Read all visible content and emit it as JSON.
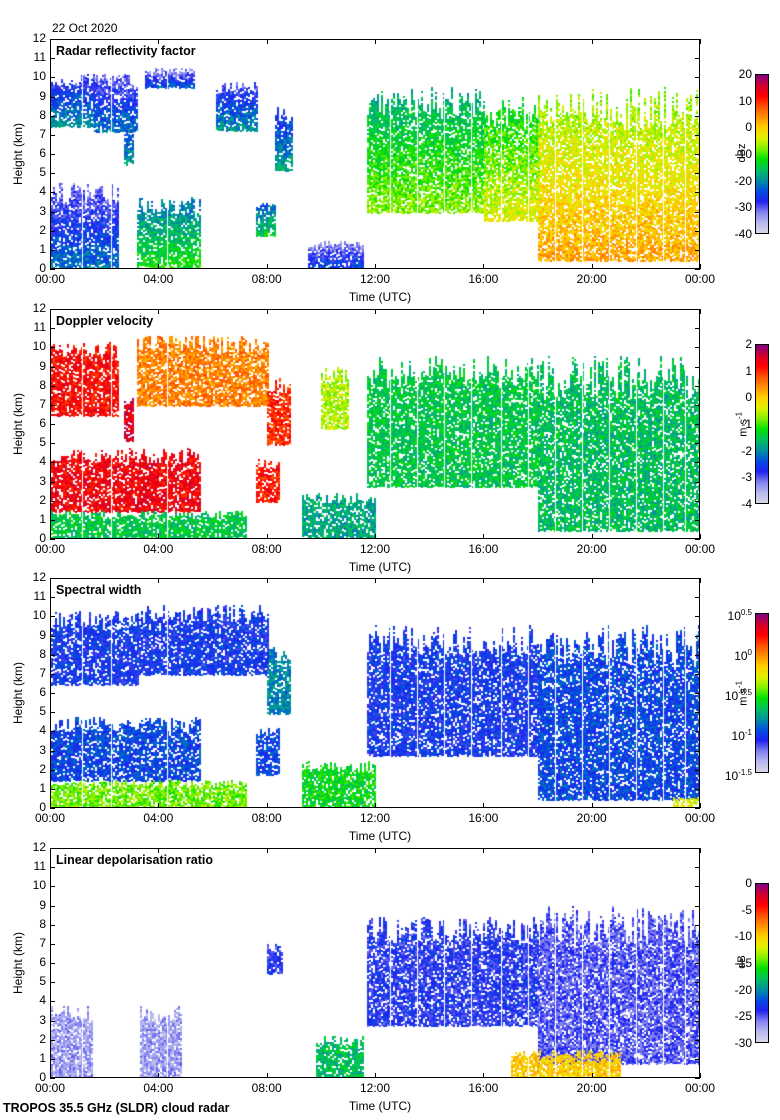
{
  "date": "22 Oct 2020",
  "footer": "TROPOS 35.5 GHz (SLDR) cloud radar",
  "colors": {
    "colormap": [
      "#d8d8e8",
      "#b8b8f0",
      "#8080f0",
      "#2020f0",
      "#0050e0",
      "#0090a0",
      "#00c060",
      "#00e000",
      "#80f000",
      "#e0f000",
      "#ffd000",
      "#ff9000",
      "#ff5000",
      "#ff0000",
      "#d00030",
      "#800080"
    ]
  },
  "chart_data": [
    {
      "type": "heatmap",
      "title": "Radar reflectivity factor",
      "xlabel": "Time (UTC)",
      "ylabel": "Height (km)",
      "xticks": [
        "00:00",
        "04:00",
        "08:00",
        "12:00",
        "16:00",
        "20:00",
        "00:00"
      ],
      "xlim_hours": [
        0,
        24
      ],
      "yticks": [
        "0",
        "1",
        "2",
        "3",
        "4",
        "5",
        "6",
        "7",
        "8",
        "9",
        "10",
        "11",
        "12"
      ],
      "ylim_km": [
        0,
        12
      ],
      "colorbar": {
        "label": "dBz",
        "range": [
          -40,
          20
        ],
        "ticks": [
          "20",
          "10",
          "0",
          "-10",
          "-20",
          "-30",
          "-40"
        ]
      },
      "regions": [
        {
          "t": [
            0,
            1.6
          ],
          "z": [
            7.5,
            10.2
          ],
          "v": -30
        },
        {
          "t": [
            1.6,
            3.2
          ],
          "z": [
            7.2,
            10.3
          ],
          "v": -32
        },
        {
          "t": [
            2.7,
            3.0
          ],
          "z": [
            5.5,
            7.5
          ],
          "v": -28
        },
        {
          "t": [
            3.5,
            5.3
          ],
          "z": [
            9.5,
            10.5
          ],
          "v": -34
        },
        {
          "t": [
            6.1,
            7.6
          ],
          "z": [
            7.3,
            9.8
          ],
          "v": -30
        },
        {
          "t": [
            8.3,
            8.9
          ],
          "z": [
            5.2,
            8.5
          ],
          "v": -28
        },
        {
          "t": [
            0,
            2.5
          ],
          "z": [
            0,
            4.5
          ],
          "v": -32
        },
        {
          "t": [
            3.2,
            5.5
          ],
          "z": [
            0,
            3.8
          ],
          "v": -22
        },
        {
          "t": [
            7.6,
            8.3
          ],
          "z": [
            1.8,
            3.5
          ],
          "v": -24
        },
        {
          "t": [
            9.5,
            11.5
          ],
          "z": [
            0,
            1.5
          ],
          "v": -34
        },
        {
          "t": [
            11.7,
            16
          ],
          "z": [
            3.0,
            9.5
          ],
          "v": -18
        },
        {
          "t": [
            16,
            18
          ],
          "z": [
            2.6,
            9.0
          ],
          "v": -14
        },
        {
          "t": [
            18,
            24
          ],
          "z": [
            0.5,
            9.5
          ],
          "v": -8
        }
      ]
    },
    {
      "type": "heatmap",
      "title": "Doppler velocity",
      "xlabel": "Time (UTC)",
      "ylabel": "Height (km)",
      "xticks": [
        "00:00",
        "04:00",
        "08:00",
        "12:00",
        "16:00",
        "20:00",
        "00:00"
      ],
      "xlim_hours": [
        0,
        24
      ],
      "yticks": [
        "0",
        "1",
        "2",
        "3",
        "4",
        "5",
        "6",
        "7",
        "8",
        "9",
        "10",
        "11",
        "12"
      ],
      "ylim_km": [
        0,
        12
      ],
      "colorbar": {
        "label": "m s-1",
        "range": [
          -4,
          2
        ],
        "ticks": [
          "2",
          "1",
          "0",
          "-1",
          "-2",
          "-3",
          "-4"
        ]
      },
      "regions": [
        {
          "t": [
            0,
            2.5
          ],
          "z": [
            6.5,
            10.3
          ],
          "v": 1.2
        },
        {
          "t": [
            2.7,
            3.0
          ],
          "z": [
            5.2,
            7.5
          ],
          "v": 1.5
        },
        {
          "t": [
            3.2,
            8.0
          ],
          "z": [
            7.0,
            10.6
          ],
          "v": 0.5
        },
        {
          "t": [
            8.0,
            8.8
          ],
          "z": [
            5.0,
            8.5
          ],
          "v": 1.0
        },
        {
          "t": [
            0,
            5.5
          ],
          "z": [
            1.5,
            4.8
          ],
          "v": 1.3
        },
        {
          "t": [
            0,
            7.2
          ],
          "z": [
            0,
            1.5
          ],
          "v": -1.5
        },
        {
          "t": [
            7.6,
            8.4
          ],
          "z": [
            2.0,
            4.2
          ],
          "v": 1.1
        },
        {
          "t": [
            9.3,
            12
          ],
          "z": [
            0,
            2.5
          ],
          "v": -1.8
        },
        {
          "t": [
            10,
            11
          ],
          "z": [
            5.8,
            9.0
          ],
          "v": -0.6
        },
        {
          "t": [
            11.7,
            18
          ],
          "z": [
            2.8,
            9.6
          ],
          "v": -1.5
        },
        {
          "t": [
            18,
            24
          ],
          "z": [
            0.5,
            9.6
          ],
          "v": -1.6
        }
      ]
    },
    {
      "type": "heatmap",
      "title": "Spectral width",
      "xlabel": "Time (UTC)",
      "ylabel": "Height (km)",
      "xticks": [
        "00:00",
        "04:00",
        "08:00",
        "12:00",
        "16:00",
        "20:00",
        "00:00"
      ],
      "xlim_hours": [
        0,
        24
      ],
      "yticks": [
        "0",
        "1",
        "2",
        "3",
        "4",
        "5",
        "6",
        "7",
        "8",
        "9",
        "10",
        "11",
        "12"
      ],
      "ylim_km": [
        0,
        12
      ],
      "colorbar": {
        "label": "m s-1",
        "scale": "log10",
        "range": [
          -1.5,
          0.5
        ],
        "ticks": [
          "10^0.5",
          "10^0",
          "10^-0.5",
          "10^-1",
          "10^-1.5"
        ]
      },
      "regions": [
        {
          "t": [
            0,
            3.2
          ],
          "z": [
            6.5,
            10.3
          ],
          "v": -1.05
        },
        {
          "t": [
            3.2,
            8.0
          ],
          "z": [
            7.0,
            10.6
          ],
          "v": -1.05
        },
        {
          "t": [
            8.0,
            8.8
          ],
          "z": [
            5.0,
            8.5
          ],
          "v": -0.85
        },
        {
          "t": [
            0,
            5.5
          ],
          "z": [
            1.5,
            4.8
          ],
          "v": -1.0
        },
        {
          "t": [
            0,
            7.2
          ],
          "z": [
            0,
            1.5
          ],
          "v": -0.45
        },
        {
          "t": [
            7.6,
            8.4
          ],
          "z": [
            1.8,
            4.2
          ],
          "v": -1.0
        },
        {
          "t": [
            9.3,
            12
          ],
          "z": [
            0,
            2.5
          ],
          "v": -0.6
        },
        {
          "t": [
            11.7,
            18
          ],
          "z": [
            2.8,
            9.6
          ],
          "v": -1.05
        },
        {
          "t": [
            18,
            24
          ],
          "z": [
            0.5,
            9.6
          ],
          "v": -1.0
        },
        {
          "t": [
            23,
            24
          ],
          "z": [
            0,
            0.6
          ],
          "v": -0.3
        }
      ]
    },
    {
      "type": "heatmap",
      "title": "Linear depolarisation ratio",
      "xlabel": "Time (UTC)",
      "ylabel": "Height (km)",
      "xticks": [
        "00:00",
        "04:00",
        "08:00",
        "12:00",
        "16:00",
        "20:00",
        "00:00"
      ],
      "xlim_hours": [
        0,
        24
      ],
      "yticks": [
        "0",
        "1",
        "2",
        "3",
        "4",
        "5",
        "6",
        "7",
        "8",
        "9",
        "10",
        "11",
        "12"
      ],
      "ylim_km": [
        0,
        12
      ],
      "colorbar": {
        "label": "dB",
        "range": [
          -30,
          0
        ],
        "ticks": [
          "0",
          "-5",
          "-10",
          "-15",
          "-20",
          "-25",
          "-30"
        ]
      },
      "regions": [
        {
          "t": [
            0,
            1.5
          ],
          "z": [
            0,
            3.8
          ],
          "v": -27
        },
        {
          "t": [
            3.3,
            4.8
          ],
          "z": [
            0,
            3.8
          ],
          "v": -27
        },
        {
          "t": [
            8.0,
            8.5
          ],
          "z": [
            5.5,
            7.0
          ],
          "v": -24
        },
        {
          "t": [
            9.8,
            11.5
          ],
          "z": [
            0,
            2.2
          ],
          "v": -18
        },
        {
          "t": [
            11.7,
            18
          ],
          "z": [
            2.8,
            8.5
          ],
          "v": -24
        },
        {
          "t": [
            18,
            24
          ],
          "z": [
            0.8,
            9.0
          ],
          "v": -25
        },
        {
          "t": [
            17,
            21
          ],
          "z": [
            0,
            1.5
          ],
          "v": -10
        }
      ]
    }
  ]
}
